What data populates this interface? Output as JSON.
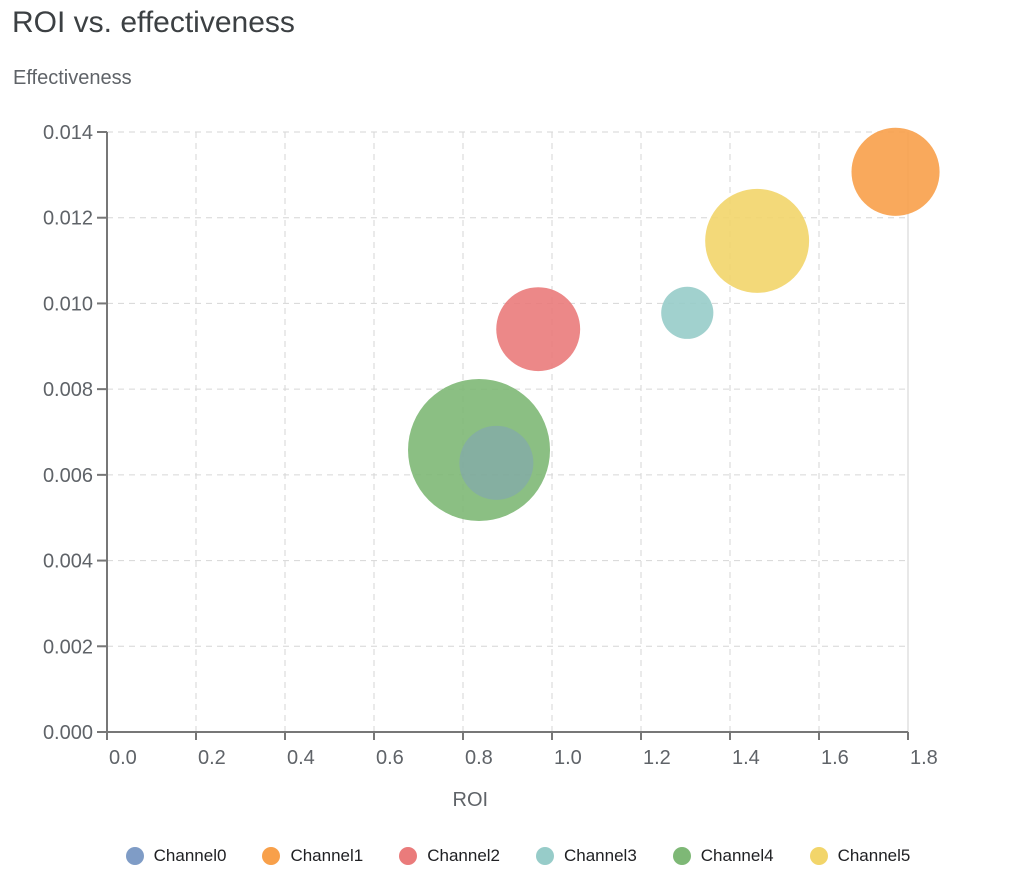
{
  "chart_data": {
    "type": "scatter",
    "title": "ROI vs. effectiveness",
    "xlabel": "ROI",
    "ylabel": "Effectiveness",
    "xlim": [
      0,
      1.8
    ],
    "ylim": [
      0,
      0.014
    ],
    "xticks": [
      "0.0",
      "0.2",
      "0.4",
      "0.6",
      "0.8",
      "1.0",
      "1.2",
      "1.4",
      "1.6",
      "1.8"
    ],
    "yticks": [
      "0.000",
      "0.002",
      "0.004",
      "0.006",
      "0.008",
      "0.010",
      "0.012",
      "0.014"
    ],
    "grid": true,
    "legend_position": "bottom",
    "series": [
      {
        "name": "Channel0",
        "color": "#7f9cc6",
        "x": 0.875,
        "y": 0.00628,
        "size": 13.7
      },
      {
        "name": "Channel1",
        "color": "#f8a04a",
        "x": 1.772,
        "y": 0.01307,
        "size": 19.4
      },
      {
        "name": "Channel2",
        "color": "#ea7b7b",
        "x": 0.969,
        "y": 0.0094,
        "size": 17.6
      },
      {
        "name": "Channel3",
        "color": "#97ccc9",
        "x": 1.304,
        "y": 0.00978,
        "size": 6.8
      },
      {
        "name": "Channel4",
        "color": "#7eb876",
        "x": 0.836,
        "y": 0.00658,
        "size": 50.4
      },
      {
        "name": "Channel5",
        "color": "#f2d56a",
        "x": 1.461,
        "y": 0.01146,
        "size": 27.0
      }
    ]
  }
}
